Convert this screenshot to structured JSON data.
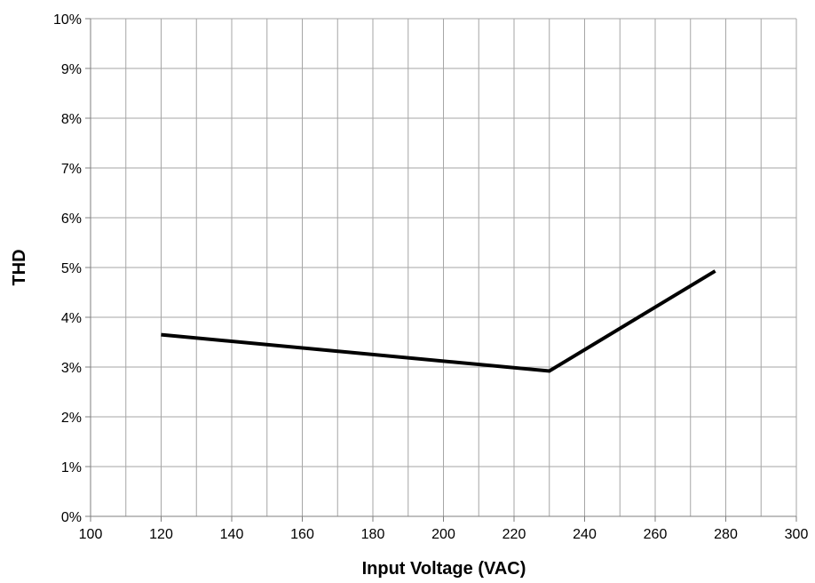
{
  "chart_data": {
    "type": "line",
    "title": "",
    "xlabel": "Input Voltage (VAC)",
    "ylabel": "THD",
    "xlim": [
      100,
      300
    ],
    "ylim": [
      0,
      10
    ],
    "x_ticks": [
      100,
      120,
      140,
      160,
      180,
      200,
      220,
      240,
      260,
      280,
      300
    ],
    "x_tick_labels": [
      "100",
      "120",
      "140",
      "160",
      "180",
      "200",
      "220",
      "240",
      "260",
      "280",
      "300"
    ],
    "y_ticks": [
      0,
      1,
      2,
      3,
      4,
      5,
      6,
      7,
      8,
      9,
      10
    ],
    "y_tick_labels": [
      "0%",
      "1%",
      "2%",
      "3%",
      "4%",
      "5%",
      "6%",
      "7%",
      "8%",
      "9%",
      "10%"
    ],
    "x_minor_grid_step": 10,
    "grid": true,
    "legend": "none",
    "series": [
      {
        "x": [
          120,
          230,
          277
        ],
        "y": [
          3.65,
          2.92,
          4.93
        ],
        "color": "#000000"
      }
    ]
  }
}
